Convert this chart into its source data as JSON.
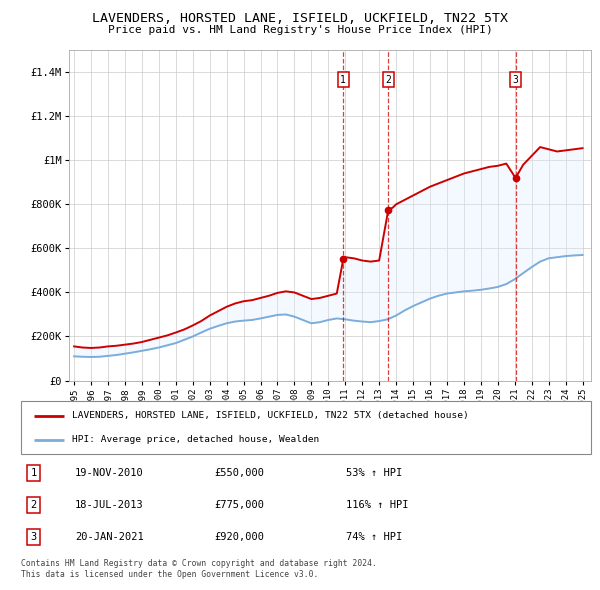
{
  "title": "LAVENDERS, HORSTED LANE, ISFIELD, UCKFIELD, TN22 5TX",
  "subtitle": "Price paid vs. HM Land Registry's House Price Index (HPI)",
  "ylabel_ticks": [
    "£0",
    "£200K",
    "£400K",
    "£600K",
    "£800K",
    "£1M",
    "£1.2M",
    "£1.4M"
  ],
  "ytick_vals": [
    0,
    200000,
    400000,
    600000,
    800000,
    1000000,
    1200000,
    1400000
  ],
  "ylim": [
    0,
    1500000
  ],
  "xlim_start": 1994.7,
  "xlim_end": 2025.5,
  "red_line_label": "LAVENDERS, HORSTED LANE, ISFIELD, UCKFIELD, TN22 5TX (detached house)",
  "blue_line_label": "HPI: Average price, detached house, Wealden",
  "transactions": [
    {
      "num": 1,
      "date": "19-NOV-2010",
      "price": 550000,
      "pct": "53%",
      "year_x": 2010.88
    },
    {
      "num": 2,
      "date": "18-JUL-2013",
      "price": 775000,
      "pct": "116%",
      "year_x": 2013.54
    },
    {
      "num": 3,
      "date": "20-JAN-2021",
      "price": 920000,
      "pct": "74%",
      "year_x": 2021.05
    }
  ],
  "footnote1": "Contains HM Land Registry data © Crown copyright and database right 2024.",
  "footnote2": "This data is licensed under the Open Government Licence v3.0.",
  "red_color": "#cc0000",
  "blue_color": "#7aacdc",
  "shade_color": "#ddeeff",
  "marker_box_color": "#cc0000",
  "red_data": [
    [
      1995.0,
      155000
    ],
    [
      1995.5,
      150000
    ],
    [
      1996.0,
      148000
    ],
    [
      1996.5,
      150000
    ],
    [
      1997.0,
      155000
    ],
    [
      1997.5,
      158000
    ],
    [
      1998.0,
      163000
    ],
    [
      1998.5,
      168000
    ],
    [
      1999.0,
      175000
    ],
    [
      1999.5,
      185000
    ],
    [
      2000.0,
      195000
    ],
    [
      2000.5,
      205000
    ],
    [
      2001.0,
      218000
    ],
    [
      2001.5,
      232000
    ],
    [
      2002.0,
      250000
    ],
    [
      2002.5,
      270000
    ],
    [
      2003.0,
      295000
    ],
    [
      2003.5,
      315000
    ],
    [
      2004.0,
      335000
    ],
    [
      2004.5,
      350000
    ],
    [
      2005.0,
      360000
    ],
    [
      2005.5,
      365000
    ],
    [
      2006.0,
      375000
    ],
    [
      2006.5,
      385000
    ],
    [
      2007.0,
      398000
    ],
    [
      2007.5,
      405000
    ],
    [
      2008.0,
      400000
    ],
    [
      2008.5,
      385000
    ],
    [
      2009.0,
      370000
    ],
    [
      2009.5,
      375000
    ],
    [
      2010.0,
      385000
    ],
    [
      2010.5,
      395000
    ],
    [
      2010.88,
      550000
    ],
    [
      2011.0,
      560000
    ],
    [
      2011.5,
      555000
    ],
    [
      2012.0,
      545000
    ],
    [
      2012.5,
      540000
    ],
    [
      2013.0,
      545000
    ],
    [
      2013.54,
      775000
    ],
    [
      2013.8,
      785000
    ],
    [
      2014.0,
      800000
    ],
    [
      2014.5,
      820000
    ],
    [
      2015.0,
      840000
    ],
    [
      2015.5,
      860000
    ],
    [
      2016.0,
      880000
    ],
    [
      2016.5,
      895000
    ],
    [
      2017.0,
      910000
    ],
    [
      2017.5,
      925000
    ],
    [
      2018.0,
      940000
    ],
    [
      2018.5,
      950000
    ],
    [
      2019.0,
      960000
    ],
    [
      2019.5,
      970000
    ],
    [
      2020.0,
      975000
    ],
    [
      2020.5,
      985000
    ],
    [
      2021.05,
      920000
    ],
    [
      2021.5,
      980000
    ],
    [
      2022.0,
      1020000
    ],
    [
      2022.5,
      1060000
    ],
    [
      2023.0,
      1050000
    ],
    [
      2023.5,
      1040000
    ],
    [
      2024.0,
      1045000
    ],
    [
      2024.5,
      1050000
    ],
    [
      2025.0,
      1055000
    ]
  ],
  "blue_data": [
    [
      1995.0,
      110000
    ],
    [
      1995.5,
      108000
    ],
    [
      1996.0,
      107000
    ],
    [
      1996.5,
      108000
    ],
    [
      1997.0,
      112000
    ],
    [
      1997.5,
      116000
    ],
    [
      1998.0,
      122000
    ],
    [
      1998.5,
      128000
    ],
    [
      1999.0,
      135000
    ],
    [
      1999.5,
      142000
    ],
    [
      2000.0,
      150000
    ],
    [
      2000.5,
      160000
    ],
    [
      2001.0,
      170000
    ],
    [
      2001.5,
      185000
    ],
    [
      2002.0,
      200000
    ],
    [
      2002.5,
      218000
    ],
    [
      2003.0,
      235000
    ],
    [
      2003.5,
      248000
    ],
    [
      2004.0,
      260000
    ],
    [
      2004.5,
      268000
    ],
    [
      2005.0,
      272000
    ],
    [
      2005.5,
      275000
    ],
    [
      2006.0,
      282000
    ],
    [
      2006.5,
      290000
    ],
    [
      2007.0,
      298000
    ],
    [
      2007.5,
      300000
    ],
    [
      2008.0,
      290000
    ],
    [
      2008.5,
      275000
    ],
    [
      2009.0,
      260000
    ],
    [
      2009.5,
      265000
    ],
    [
      2010.0,
      275000
    ],
    [
      2010.5,
      282000
    ],
    [
      2011.0,
      278000
    ],
    [
      2011.5,
      272000
    ],
    [
      2012.0,
      268000
    ],
    [
      2012.5,
      265000
    ],
    [
      2013.0,
      270000
    ],
    [
      2013.5,
      278000
    ],
    [
      2014.0,
      295000
    ],
    [
      2014.5,
      318000
    ],
    [
      2015.0,
      338000
    ],
    [
      2015.5,
      355000
    ],
    [
      2016.0,
      372000
    ],
    [
      2016.5,
      385000
    ],
    [
      2017.0,
      395000
    ],
    [
      2017.5,
      400000
    ],
    [
      2018.0,
      405000
    ],
    [
      2018.5,
      408000
    ],
    [
      2019.0,
      412000
    ],
    [
      2019.5,
      418000
    ],
    [
      2020.0,
      425000
    ],
    [
      2020.5,
      438000
    ],
    [
      2021.0,
      460000
    ],
    [
      2021.5,
      488000
    ],
    [
      2022.0,
      515000
    ],
    [
      2022.5,
      540000
    ],
    [
      2023.0,
      555000
    ],
    [
      2023.5,
      560000
    ],
    [
      2024.0,
      565000
    ],
    [
      2024.5,
      568000
    ],
    [
      2025.0,
      570000
    ]
  ]
}
